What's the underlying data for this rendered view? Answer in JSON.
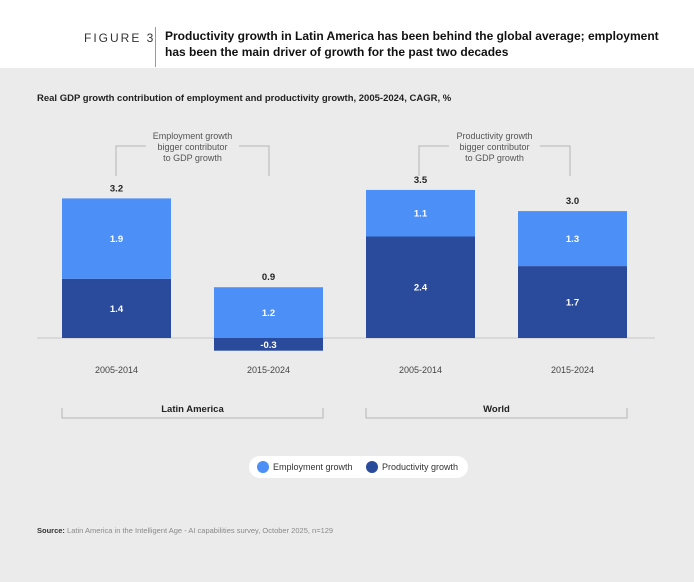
{
  "figure": {
    "label": "FIGURE 3",
    "title": "Productivity growth in Latin America has been behind the global average; employment has been the main driver of growth for the past two decades"
  },
  "source": {
    "prefix": "Source:",
    "text": "Latin America in the Intelligent Age - AI capabilities survey, October 2025, n=129"
  },
  "legend": {
    "employment": "Employment growth",
    "productivity": "Productivity growth"
  },
  "colors": {
    "employment": "#4b8ff7",
    "productivity": "#2a4a9c",
    "panel": "#ebebeb"
  },
  "chart_data": {
    "type": "bar",
    "stacked": true,
    "title": "Real GDP growth contribution of employment and productivity growth, 2005-2024, CAGR, %",
    "categories": [
      "2005-2014",
      "2015-2024",
      "2005-2014",
      "2015-2024"
    ],
    "groups": [
      {
        "name": "Latin  America",
        "categories": [
          0,
          1
        ],
        "annotation": "Employment growth\nbigger contributor\nto GDP growth"
      },
      {
        "name": "World",
        "categories": [
          2,
          3
        ],
        "annotation": "Productivity growth\nbigger contributor\nto GDP growth"
      }
    ],
    "series": [
      {
        "name": "Productivity growth",
        "values": [
          1.4,
          -0.3,
          2.4,
          1.7
        ],
        "labels": [
          "1.4",
          "-0.3",
          "2.4",
          "1.7"
        ]
      },
      {
        "name": "Employment growth",
        "values": [
          1.9,
          1.2,
          1.1,
          1.3
        ],
        "labels": [
          "1.9",
          "1.2",
          "1.1",
          "1.3"
        ]
      }
    ],
    "totals": [
      3.2,
      0.9,
      3.5,
      3.0
    ],
    "total_labels": [
      "3.2",
      "0.9",
      "3.5",
      "3.0"
    ],
    "ylim": [
      -0.3,
      3.5
    ],
    "grid": false,
    "legend_position": "bottom-center"
  }
}
